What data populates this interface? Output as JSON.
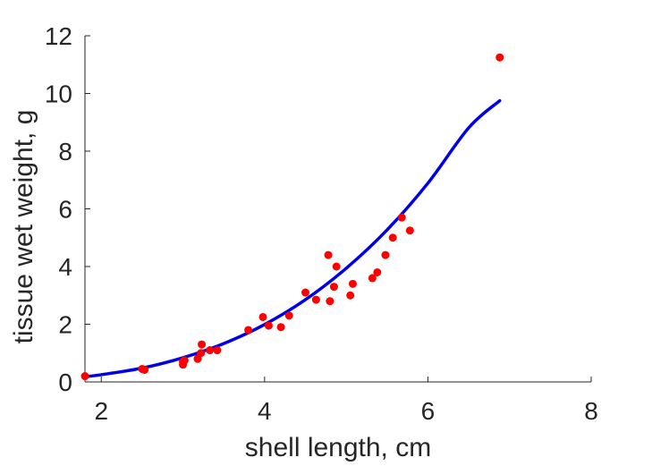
{
  "chart_data": {
    "type": "scatter",
    "xlabel": "shell length, cm",
    "ylabel": "tissue wet weight, g",
    "xlim": [
      1.8,
      8
    ],
    "ylim": [
      0,
      12
    ],
    "xticks": [
      2,
      4,
      6,
      8
    ],
    "yticks": [
      0,
      2,
      4,
      6,
      8,
      10,
      12
    ],
    "xtick_labels": [
      "2",
      "4",
      "6",
      "8"
    ],
    "ytick_labels": [
      "0",
      "2",
      "4",
      "6",
      "8",
      "10",
      "12"
    ],
    "grid": false,
    "legend": "none",
    "colors": {
      "points": "#ff0000",
      "fit": "#0000e6",
      "axis": "#262626"
    },
    "points": [
      [
        1.8,
        0.2
      ],
      [
        2.5,
        0.45
      ],
      [
        2.53,
        0.42
      ],
      [
        3.0,
        0.6
      ],
      [
        3.0,
        0.7
      ],
      [
        3.02,
        0.75
      ],
      [
        3.18,
        0.8
      ],
      [
        3.22,
        1.0
      ],
      [
        3.23,
        1.3
      ],
      [
        3.33,
        1.1
      ],
      [
        3.42,
        1.1
      ],
      [
        3.8,
        1.8
      ],
      [
        3.98,
        2.25
      ],
      [
        4.05,
        1.95
      ],
      [
        4.2,
        1.9
      ],
      [
        4.3,
        2.3
      ],
      [
        4.5,
        3.1
      ],
      [
        4.63,
        2.85
      ],
      [
        4.78,
        4.4
      ],
      [
        4.8,
        2.8
      ],
      [
        4.85,
        3.3
      ],
      [
        4.88,
        4.0
      ],
      [
        5.05,
        3.0
      ],
      [
        5.08,
        3.4
      ],
      [
        5.32,
        3.6
      ],
      [
        5.38,
        3.8
      ],
      [
        5.48,
        4.4
      ],
      [
        5.57,
        5.0
      ],
      [
        5.68,
        5.7
      ],
      [
        5.78,
        5.25
      ],
      [
        6.88,
        11.25
      ]
    ],
    "fit": {
      "x": [
        1.8,
        2.0,
        2.5,
        3.0,
        3.5,
        4.0,
        4.5,
        5.0,
        5.5,
        6.0,
        6.5,
        6.88
      ],
      "y": [
        0.18,
        0.25,
        0.48,
        0.84,
        1.33,
        1.99,
        2.85,
        3.94,
        5.27,
        6.89,
        8.81,
        9.75
      ]
    }
  }
}
